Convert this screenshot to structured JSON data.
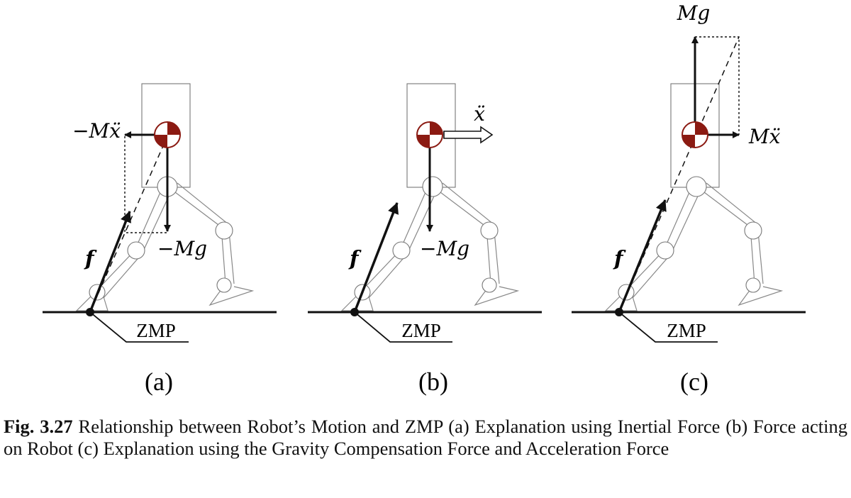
{
  "panels": [
    {
      "id": "a",
      "sublabel": "(a)",
      "labels": {
        "accel_force": "−Mẍ",
        "gravity_force": "−Mg",
        "reaction_force": "f",
        "zmp": "ZMP"
      }
    },
    {
      "id": "b",
      "sublabel": "(b)",
      "labels": {
        "acceleration": "ẍ",
        "gravity_force": "−Mg",
        "reaction_force": "f",
        "zmp": "ZMP"
      }
    },
    {
      "id": "c",
      "sublabel": "(c)",
      "labels": {
        "gravity_comp": "Mg",
        "accel_force": "Mẍ",
        "reaction_force": "f",
        "zmp": "ZMP"
      }
    }
  ],
  "caption": {
    "figure_number": "Fig. 3.27",
    "text": "Relationship between Robot’s Motion and ZMP (a) Explanation using Inertial Force (b) Force acting on Robot (c) Explanation using the Gravity Compensation Force and Acceleration Force"
  },
  "colors": {
    "com_marker": "#8b1a12",
    "line": "#111111",
    "robot_outline": "#888888"
  }
}
